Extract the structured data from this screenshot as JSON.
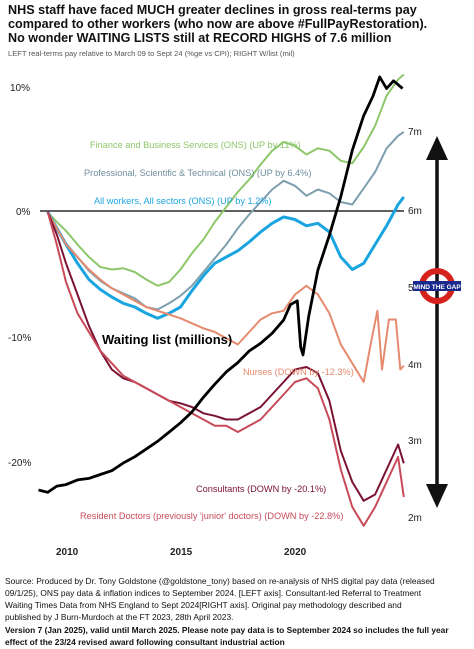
{
  "chart_data": {
    "type": "line",
    "title_lines": [
      "NHS staff have faced MUCH greater declines in gross real-terms pay",
      "compared to other workers (who now are above #FullPayRestoration).",
      "No wonder WAITING LISTS still at RECORD HIGHS of 7.6 million"
    ],
    "subtitle": "LEFT real-terms pay relative to March 09 to Sept 24 (%ge vs CPI); RIGHT W/list (mil)",
    "left_axis": {
      "ticks": [
        "10%",
        "0%",
        "-10%",
        "-20%"
      ],
      "values": [
        10,
        0,
        -10,
        -20
      ],
      "range": [
        -24,
        13
      ]
    },
    "right_axis": {
      "ticks": [
        "7m",
        "6m",
        "5m",
        "4m",
        "3m",
        "2m"
      ],
      "values": [
        7,
        6,
        5,
        4,
        3,
        2
      ],
      "range": [
        1.85,
        7.95
      ]
    },
    "x_axis": {
      "ticks": [
        "2010",
        "2015",
        "2020"
      ],
      "values": [
        2010,
        2015,
        2020
      ],
      "range": [
        2008.6,
        2024.9
      ]
    },
    "series": [
      {
        "name": "Finance and Business Services (ONS) (UP by 11%)",
        "axis": "left",
        "color": "#8dc76a",
        "points": [
          [
            2009.2,
            0
          ],
          [
            2009.6,
            -0.8
          ],
          [
            2010,
            -1.5
          ],
          [
            2010.5,
            -2.6
          ],
          [
            2011,
            -3.6
          ],
          [
            2011.5,
            -4.4
          ],
          [
            2012,
            -4.6
          ],
          [
            2012.5,
            -4.5
          ],
          [
            2013,
            -4.8
          ],
          [
            2013.5,
            -5.4
          ],
          [
            2014,
            -5.9
          ],
          [
            2014.5,
            -5.6
          ],
          [
            2015,
            -4.6
          ],
          [
            2015.5,
            -3.3
          ],
          [
            2016,
            -2.2
          ],
          [
            2016.5,
            -0.8
          ],
          [
            2017,
            0.4
          ],
          [
            2017.5,
            1.6
          ],
          [
            2018,
            2.6
          ],
          [
            2018.5,
            3.8
          ],
          [
            2019,
            4.9
          ],
          [
            2019.5,
            5.6
          ],
          [
            2020,
            5.3
          ],
          [
            2020.5,
            4.6
          ],
          [
            2021,
            5.1
          ],
          [
            2021.5,
            4.9
          ],
          [
            2022,
            4.1
          ],
          [
            2022.5,
            3.9
          ],
          [
            2023,
            5.2
          ],
          [
            2023.5,
            6.9
          ],
          [
            2024,
            9.3
          ],
          [
            2024.5,
            10.6
          ],
          [
            2024.75,
            11
          ]
        ]
      },
      {
        "name": "Professional, Scientific & Technical (ONS) (UP by 6.4%)",
        "axis": "left",
        "color": "#7e9fae",
        "points": [
          [
            2009.2,
            0
          ],
          [
            2009.6,
            -1.2
          ],
          [
            2010,
            -2.5
          ],
          [
            2010.5,
            -3.6
          ],
          [
            2011,
            -4.7
          ],
          [
            2011.5,
            -5.5
          ],
          [
            2012,
            -6.1
          ],
          [
            2012.5,
            -6.5
          ],
          [
            2013,
            -6.9
          ],
          [
            2013.5,
            -7.6
          ],
          [
            2014,
            -7.8
          ],
          [
            2014.5,
            -7.3
          ],
          [
            2015,
            -6.7
          ],
          [
            2015.5,
            -5.9
          ],
          [
            2016,
            -4.8
          ],
          [
            2016.5,
            -3.7
          ],
          [
            2017,
            -2.6
          ],
          [
            2017.5,
            -1.3
          ],
          [
            2018,
            -0.2
          ],
          [
            2018.5,
            0.8
          ],
          [
            2019,
            1.8
          ],
          [
            2019.5,
            2.5
          ],
          [
            2020,
            2.1
          ],
          [
            2020.5,
            1.3
          ],
          [
            2021,
            1.8
          ],
          [
            2021.5,
            1.5
          ],
          [
            2022,
            0.8
          ],
          [
            2022.5,
            0.6
          ],
          [
            2023,
            1.9
          ],
          [
            2023.5,
            3.2
          ],
          [
            2024,
            5.1
          ],
          [
            2024.5,
            6.1
          ],
          [
            2024.75,
            6.4
          ]
        ]
      },
      {
        "name": "All workers, All sectors (ONS) (UP by 1.2%)",
        "axis": "left",
        "color": "#1ba5e0",
        "points": [
          [
            2009.2,
            0
          ],
          [
            2009.6,
            -1.3
          ],
          [
            2010,
            -2.6
          ],
          [
            2010.5,
            -4.1
          ],
          [
            2011,
            -5.4
          ],
          [
            2011.5,
            -6.2
          ],
          [
            2012,
            -6.8
          ],
          [
            2012.5,
            -7.3
          ],
          [
            2013,
            -7.6
          ],
          [
            2013.5,
            -8.1
          ],
          [
            2014,
            -8.5
          ],
          [
            2014.5,
            -8.1
          ],
          [
            2015,
            -7.6
          ],
          [
            2015.5,
            -6.3
          ],
          [
            2016,
            -5.1
          ],
          [
            2016.5,
            -4.1
          ],
          [
            2017,
            -3.6
          ],
          [
            2017.5,
            -3.1
          ],
          [
            2018,
            -2.4
          ],
          [
            2018.5,
            -1.6
          ],
          [
            2019,
            -0.9
          ],
          [
            2019.5,
            -0.4
          ],
          [
            2020,
            -0.6
          ],
          [
            2020.5,
            -1.1
          ],
          [
            2021,
            -0.9
          ],
          [
            2021.5,
            -1.6
          ],
          [
            2022,
            -3.6
          ],
          [
            2022.5,
            -4.6
          ],
          [
            2023,
            -4.1
          ],
          [
            2023.5,
            -2.6
          ],
          [
            2024,
            -1.1
          ],
          [
            2024.5,
            0.6
          ],
          [
            2024.75,
            1.2
          ]
        ]
      },
      {
        "name": "Nurses (DOWN by -12.3%)",
        "axis": "left",
        "color": "#e58a6e",
        "points": [
          [
            2009.2,
            0
          ],
          [
            2009.6,
            -1.3
          ],
          [
            2010,
            -2.6
          ],
          [
            2010.5,
            -3.6
          ],
          [
            2011,
            -4.6
          ],
          [
            2011.5,
            -5.4
          ],
          [
            2012,
            -6.1
          ],
          [
            2012.5,
            -6.6
          ],
          [
            2013,
            -7.1
          ],
          [
            2013.5,
            -7.6
          ],
          [
            2014,
            -7.9
          ],
          [
            2014.5,
            -8.2
          ],
          [
            2015,
            -8.5
          ],
          [
            2015.5,
            -8.9
          ],
          [
            2016,
            -9.3
          ],
          [
            2016.5,
            -9.6
          ],
          [
            2017,
            -10.1
          ],
          [
            2017.5,
            -10.6
          ],
          [
            2018,
            -9.6
          ],
          [
            2018.5,
            -8.6
          ],
          [
            2019,
            -8.1
          ],
          [
            2019.5,
            -7.9
          ],
          [
            2020,
            -6.6
          ],
          [
            2020.5,
            -5.9
          ],
          [
            2021,
            -6.6
          ],
          [
            2021.5,
            -8.1
          ],
          [
            2022,
            -10.6
          ],
          [
            2022.5,
            -12.1
          ],
          [
            2023,
            -13.6
          ],
          [
            2023.3,
            -10.6
          ],
          [
            2023.6,
            -7.9
          ],
          [
            2023.8,
            -12.6
          ],
          [
            2024.1,
            -8.6
          ],
          [
            2024.4,
            -8.6
          ],
          [
            2024.6,
            -12.6
          ],
          [
            2024.75,
            -12.3
          ]
        ]
      },
      {
        "name": "Consultants (DOWN by -20.1%)",
        "axis": "left",
        "color": "#7a1232",
        "points": [
          [
            2009.2,
            0
          ],
          [
            2009.6,
            -1.8
          ],
          [
            2010,
            -4.1
          ],
          [
            2010.5,
            -6.6
          ],
          [
            2011,
            -9.1
          ],
          [
            2011.5,
            -11.1
          ],
          [
            2012,
            -12.6
          ],
          [
            2012.5,
            -13.3
          ],
          [
            2013,
            -13.6
          ],
          [
            2013.5,
            -14.1
          ],
          [
            2014,
            -14.6
          ],
          [
            2014.5,
            -15.1
          ],
          [
            2015,
            -15.3
          ],
          [
            2015.5,
            -15.6
          ],
          [
            2016,
            -16.1
          ],
          [
            2016.5,
            -16.3
          ],
          [
            2017,
            -16.6
          ],
          [
            2017.5,
            -16.6
          ],
          [
            2018,
            -16.1
          ],
          [
            2018.5,
            -15.6
          ],
          [
            2019,
            -14.6
          ],
          [
            2019.5,
            -13.6
          ],
          [
            2020,
            -12.6
          ],
          [
            2020.5,
            -12.4
          ],
          [
            2021,
            -12.9
          ],
          [
            2021.5,
            -15.1
          ],
          [
            2022,
            -19.1
          ],
          [
            2022.5,
            -21.6
          ],
          [
            2023,
            -23.1
          ],
          [
            2023.5,
            -22.6
          ],
          [
            2024,
            -20.6
          ],
          [
            2024.5,
            -18.6
          ],
          [
            2024.75,
            -20.1
          ]
        ]
      },
      {
        "name": "Resident Doctors (previously 'junior' doctors) (DOWN by -22.8%)",
        "axis": "left",
        "color": "#c84a58",
        "points": [
          [
            2009.2,
            0
          ],
          [
            2009.6,
            -2.6
          ],
          [
            2010,
            -5.6
          ],
          [
            2010.5,
            -8.1
          ],
          [
            2011,
            -9.6
          ],
          [
            2011.5,
            -11.1
          ],
          [
            2012,
            -12.1
          ],
          [
            2012.5,
            -13.1
          ],
          [
            2013,
            -13.6
          ],
          [
            2013.5,
            -14.1
          ],
          [
            2014,
            -14.6
          ],
          [
            2014.5,
            -15.1
          ],
          [
            2015,
            -15.6
          ],
          [
            2015.5,
            -16.1
          ],
          [
            2016,
            -16.6
          ],
          [
            2016.5,
            -17.1
          ],
          [
            2017,
            -17.1
          ],
          [
            2017.5,
            -17.6
          ],
          [
            2018,
            -17.1
          ],
          [
            2018.5,
            -16.6
          ],
          [
            2019,
            -15.6
          ],
          [
            2019.5,
            -14.6
          ],
          [
            2020,
            -13.6
          ],
          [
            2020.5,
            -13.3
          ],
          [
            2021,
            -14.1
          ],
          [
            2021.5,
            -16.6
          ],
          [
            2022,
            -20.6
          ],
          [
            2022.5,
            -23.6
          ],
          [
            2023,
            -25.1
          ],
          [
            2023.5,
            -23.6
          ],
          [
            2024,
            -21.6
          ],
          [
            2024.5,
            -19.6
          ],
          [
            2024.75,
            -22.8
          ]
        ]
      },
      {
        "name": "Waiting list (millions)",
        "axis": "right",
        "color": "#000000",
        "points": [
          [
            2008.8,
            2.35
          ],
          [
            2009.2,
            2.32
          ],
          [
            2009.6,
            2.4
          ],
          [
            2010,
            2.42
          ],
          [
            2010.5,
            2.48
          ],
          [
            2011,
            2.5
          ],
          [
            2011.5,
            2.55
          ],
          [
            2012,
            2.6
          ],
          [
            2012.5,
            2.7
          ],
          [
            2013,
            2.78
          ],
          [
            2013.5,
            2.88
          ],
          [
            2014,
            2.98
          ],
          [
            2014.5,
            3.1
          ],
          [
            2015,
            3.22
          ],
          [
            2015.5,
            3.36
          ],
          [
            2016,
            3.55
          ],
          [
            2016.5,
            3.72
          ],
          [
            2017,
            3.88
          ],
          [
            2017.5,
            4.0
          ],
          [
            2018,
            4.15
          ],
          [
            2018.5,
            4.25
          ],
          [
            2019,
            4.38
          ],
          [
            2019.5,
            4.55
          ],
          [
            2019.8,
            4.75
          ],
          [
            2020.1,
            4.8
          ],
          [
            2020.25,
            4.2
          ],
          [
            2020.35,
            4.1
          ],
          [
            2020.6,
            4.6
          ],
          [
            2021,
            5.2
          ],
          [
            2021.5,
            5.65
          ],
          [
            2022,
            6.15
          ],
          [
            2022.5,
            6.75
          ],
          [
            2023,
            7.2
          ],
          [
            2023.4,
            7.45
          ],
          [
            2023.7,
            7.7
          ],
          [
            2024,
            7.55
          ],
          [
            2024.3,
            7.65
          ],
          [
            2024.5,
            7.6
          ],
          [
            2024.7,
            7.55
          ]
        ]
      }
    ],
    "labels": {
      "finance": "Finance and Business Services (ONS) (UP by 11%)",
      "professional": "Professional, Scientific & Technical (ONS) (UP by 6.4%)",
      "allworkers": "All workers, All sectors (ONS) (UP by 1.2%)",
      "waiting": "Waiting list (millions)",
      "nurses": "Nurses (DOWN by -12.3%)",
      "consultants": "Consultants (DOWN by -20.1%)",
      "resident": "Resident Doctors (previously 'junior' doctors) (DOWN by -22.8%)"
    },
    "roundel_text": "MIND THE GAP",
    "source_text_lines": [
      "Source: Produced by Dr. Tony Goldstone (@goldstone_tony) based on re-analysis of NHS digital pay data (released",
      "09/1/25), ONS pay data & inflation indices to September 2024. [LEFT axis]. Consultant-led Referral to Treatment",
      "Waiting Times Data from NHS England to Sept 2024[RIGHT axis]. Original pay methodology described and",
      "published by J Burn-Murdoch at the FT 2023, 28th April 2023."
    ],
    "version_lines": [
      "Version 7 (Jan 2025), valid until March 2025. Please note pay data is to September 2024 so includes the full year",
      "effect of the 23/24 revised award following consultant industrial action"
    ],
    "colors": {
      "zero_line": "#000000",
      "arrow": "#111111",
      "roundel_red": "#d6221d",
      "roundel_bar": "#1a2a8c"
    }
  }
}
